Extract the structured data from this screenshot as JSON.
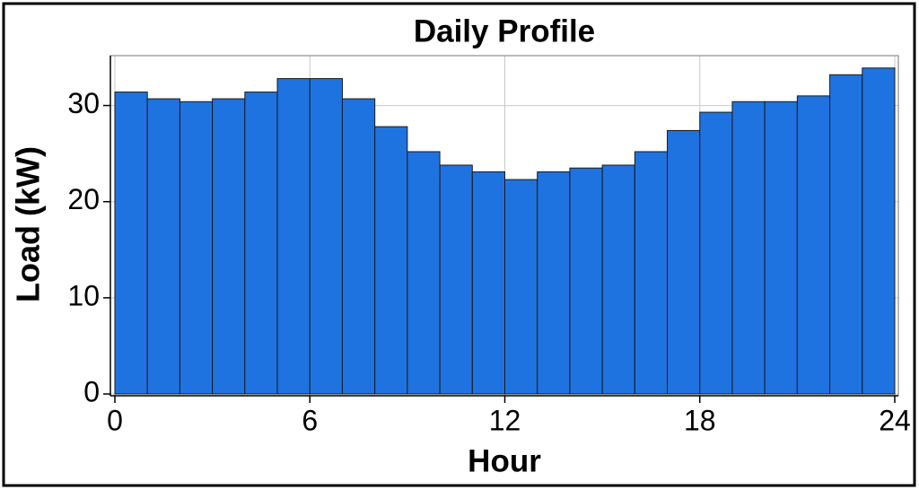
{
  "chart_data": {
    "type": "histogram",
    "title": "Daily Profile",
    "x_label": "Hour",
    "y_label": "Load (kW)",
    "bins": [
      0,
      1,
      2,
      3,
      4,
      5,
      6,
      7,
      8,
      9,
      10,
      11,
      12,
      13,
      14,
      15,
      16,
      17,
      18,
      19,
      20,
      21,
      22,
      23,
      24
    ],
    "values": [
      31.4,
      30.7,
      30.4,
      30.7,
      31.4,
      32.8,
      32.8,
      30.7,
      27.8,
      25.2,
      23.8,
      23.1,
      22.3,
      23.1,
      23.5,
      23.8,
      25.2,
      27.4,
      29.3,
      30.4,
      30.4,
      31.0,
      33.2,
      33.9
    ],
    "color": "#1f73e0",
    "xlim": [
      0,
      24
    ],
    "xticks": [
      0,
      6,
      12,
      18,
      24
    ],
    "ylim": [
      0,
      35
    ],
    "yticks": [
      0,
      10,
      20,
      30
    ],
    "grid": true
  }
}
